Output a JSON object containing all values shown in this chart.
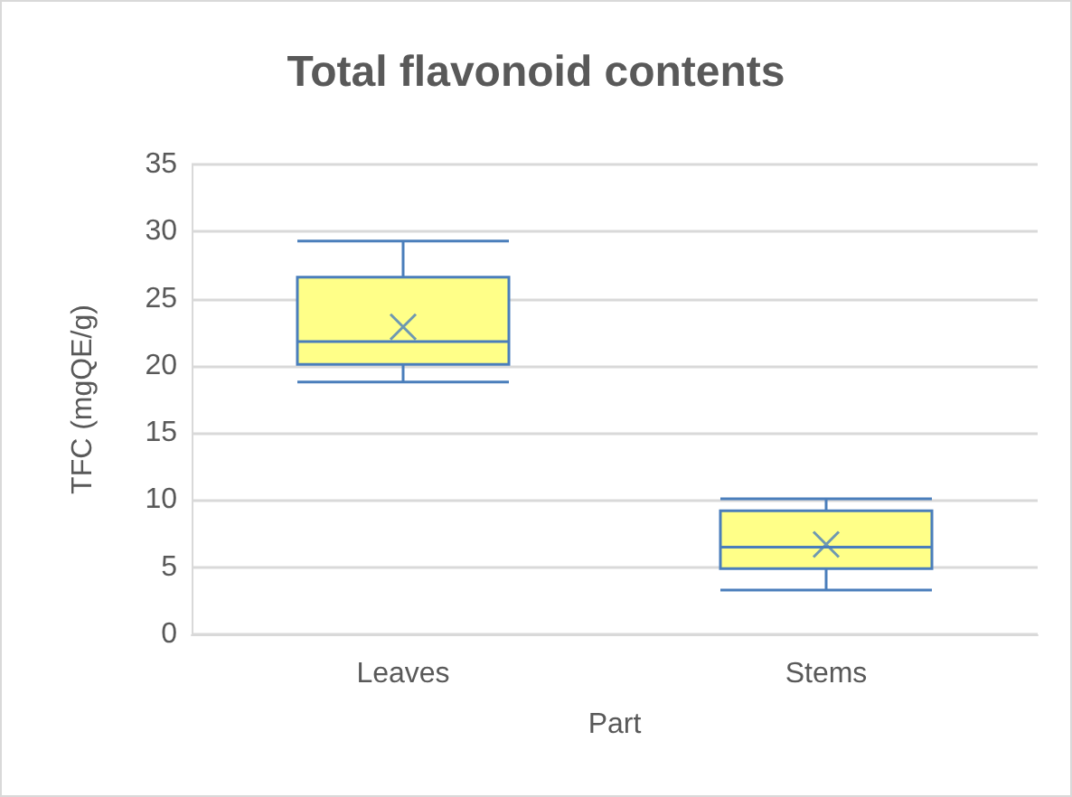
{
  "chart_data": {
    "type": "box",
    "title": "Total flavonoid contents",
    "xlabel": "Part",
    "ylabel": "TFC (mgQE/g)",
    "categories": [
      "Leaves",
      "Stems"
    ],
    "boxes": [
      {
        "low": 18.8,
        "q1": 20.1,
        "median": 21.8,
        "q3": 26.6,
        "high": 29.3,
        "mean": 22.9
      },
      {
        "low": 3.3,
        "q1": 4.9,
        "median": 6.5,
        "q3": 9.2,
        "high": 10.1,
        "mean": 6.7
      }
    ],
    "color": "#ffff88",
    "ylim": [
      0,
      35
    ],
    "yticks": [
      0,
      5,
      10,
      15,
      20,
      25,
      30,
      35
    ],
    "grid": "y"
  }
}
